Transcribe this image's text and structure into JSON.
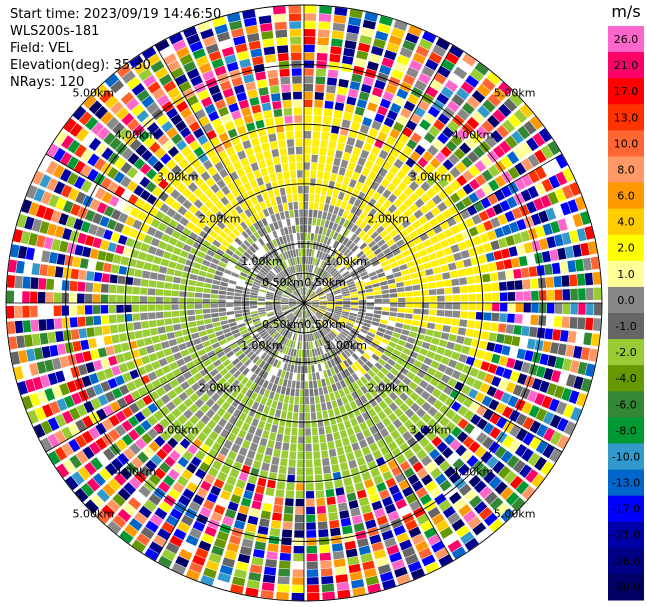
{
  "info": {
    "start_time": "Start time: 2023/09/19 14:46:50",
    "instrument": "WLS200s-181",
    "field": "Field: VEL",
    "elevation": "Elevation(deg): 35.30",
    "nrays": "NRays: 120"
  },
  "chart_data": {
    "type": "heatmap",
    "subtype": "polar-ppi",
    "field": "VEL",
    "nrays": 120,
    "range_max_km": 5.0,
    "range_rings_km": [
      0.5,
      1.0,
      2.0,
      3.0,
      4.0,
      5.0
    ],
    "ring_labels": [
      "0.50km",
      "1.00km",
      "2.00km",
      "3.00km",
      "4.00km",
      "5.00km"
    ],
    "spokes_deg": [
      0,
      30,
      60,
      90,
      120,
      150,
      180,
      210,
      240,
      270,
      300,
      330
    ],
    "colorbar": {
      "unit": "m/s",
      "tick_labels": [
        "26.0",
        "21.0",
        "17.0",
        "13.0",
        "10.0",
        "8.0",
        "6.0",
        "4.0",
        "2.0",
        "1.0",
        "0.0",
        "-1.0",
        "-2.0",
        "-4.0",
        "-6.0",
        "-8.0",
        "-10.0",
        "-13.0",
        "-17.0",
        "-21.0",
        "-26.0",
        "-30.0"
      ],
      "colors": [
        "#ff66cc",
        "#ff0066",
        "#ff0000",
        "#ff3300",
        "#ff6633",
        "#ff9966",
        "#ff9900",
        "#ffcc00",
        "#ffff00",
        "#ffff99",
        "#888888",
        "#666666",
        "#99cc33",
        "#669900",
        "#338833",
        "#009933",
        "#3399cc",
        "#0066cc",
        "#0000ff",
        "#0000aa",
        "#000088",
        "#000066"
      ]
    }
  }
}
